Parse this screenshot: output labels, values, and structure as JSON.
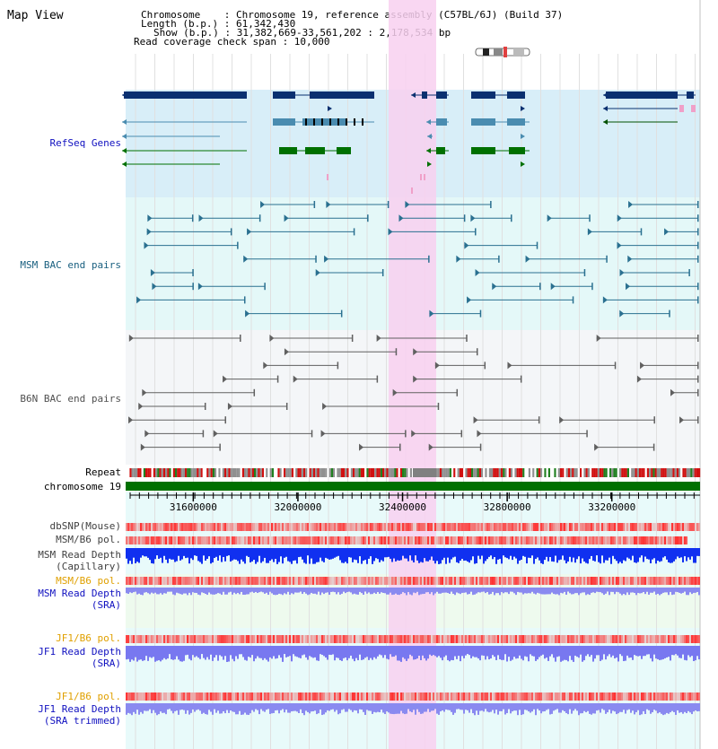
{
  "title": "Map View",
  "info": {
    "chromosome_line": "Chromosome    : Chromosome 19, reference assembly (C57BL/6J) (Build 37)",
    "length_line": "Length (b.p.) : 61,342,430",
    "show_line": "Show (b.p.) : 31,382,669-33,561,202 : 2,178,534 bp",
    "read_check_line": "Read coverage check span : 10,000"
  },
  "tracks": {
    "refseq": "RefSeq Genes",
    "msm_bac": "MSM BAC end pairs",
    "b6n_bac": "B6N BAC end pairs",
    "repeat": "Repeat",
    "chromosome": "chromosome 19",
    "dbsnp": "dbSNP(Mouse)",
    "msm_b6_pol_1": "MSM/B6 pol.",
    "msm_depth_cap_1": "MSM Read Depth",
    "msm_depth_cap_2": "(Capillary)",
    "msm_b6_pol_2": "MSM/B6 pol.",
    "msm_depth_sra_1": "MSM Read Depth",
    "msm_depth_sra_2": "(SRA)",
    "jf1_b6_pol_1": "JF1/B6 pol.",
    "jf1_depth_sra_1": "JF1 Read Depth",
    "jf1_depth_sra_2": "(SRA)",
    "jf1_b6_pol_2": "JF1/B6 pol.",
    "jf1_depth_trim_1": "JF1 Read Depth",
    "jf1_depth_trim_2": "(SRA trimmed)"
  },
  "ruler": {
    "ticks": [
      31600000,
      32000000,
      32400000,
      32800000,
      33200000
    ],
    "range_start": 31382669,
    "range_end": 33561202
  },
  "colors": {
    "refseq_label": "#1010c0",
    "msm_bac_label": "#1a6080",
    "b6n_label": "#505050",
    "pol_orange": "#e0a000",
    "depth_blue": "#0000b0",
    "highlight_pink": "#f8d0f0"
  }
}
